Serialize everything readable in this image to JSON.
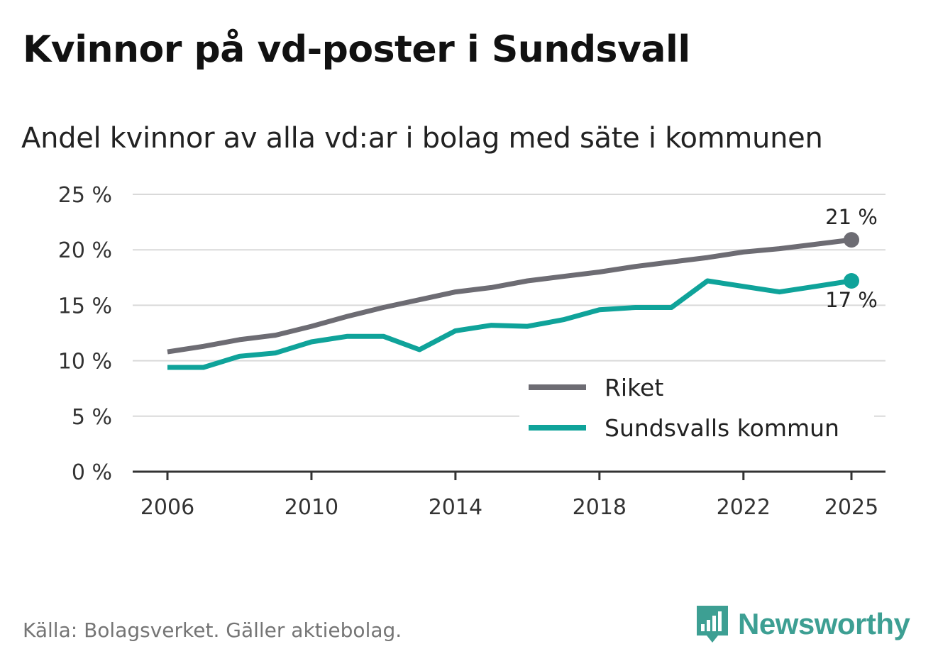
{
  "header": {
    "title": "Kvinnor på vd-poster i Sundsvall",
    "subtitle": "Andel kvinnor av alla vd:ar i bolag med säte i kommunen"
  },
  "footer": {
    "source": "Källa: Bolagsverket. Gäller aktiebolag.",
    "brand": "Newsworthy"
  },
  "colors": {
    "riket": "#6d6c73",
    "sundsvall": "#0fa39a",
    "grid": "#d9d9d9",
    "axis": "#333333"
  },
  "chart_data": {
    "type": "line",
    "title": "Kvinnor på vd-poster i Sundsvall",
    "subtitle": "Andel kvinnor av alla vd:ar i bolag med säte i kommunen",
    "xlabel": "",
    "ylabel": "",
    "xlim": [
      2006,
      2025
    ],
    "ylim": [
      0,
      25
    ],
    "x_ticks": [
      2006,
      2010,
      2014,
      2018,
      2022,
      2025
    ],
    "y_ticks": [
      0,
      5,
      10,
      15,
      20,
      25
    ],
    "y_tick_labels": [
      "0 %",
      "5 %",
      "10 %",
      "15 %",
      "20 %",
      "25 %"
    ],
    "grid": true,
    "legend_position": "bottom-right",
    "x": [
      2006,
      2007,
      2008,
      2009,
      2010,
      2011,
      2012,
      2013,
      2014,
      2015,
      2016,
      2017,
      2018,
      2019,
      2020,
      2021,
      2022,
      2023,
      2024,
      2025
    ],
    "series": [
      {
        "name": "Riket",
        "color": "#6d6c73",
        "values": [
          10.8,
          11.3,
          11.9,
          12.3,
          13.1,
          14.0,
          14.8,
          15.5,
          16.2,
          16.6,
          17.2,
          17.6,
          18.0,
          18.5,
          18.9,
          19.3,
          19.8,
          20.1,
          20.5,
          20.9
        ],
        "end_label": "21 %"
      },
      {
        "name": "Sundsvalls kommun",
        "color": "#0fa39a",
        "values": [
          9.4,
          9.4,
          10.4,
          10.7,
          11.7,
          12.2,
          12.2,
          11.0,
          12.7,
          13.2,
          13.1,
          13.7,
          14.6,
          14.8,
          14.8,
          17.2,
          16.7,
          16.2,
          16.7,
          17.2
        ],
        "end_label": "17 %"
      }
    ]
  }
}
